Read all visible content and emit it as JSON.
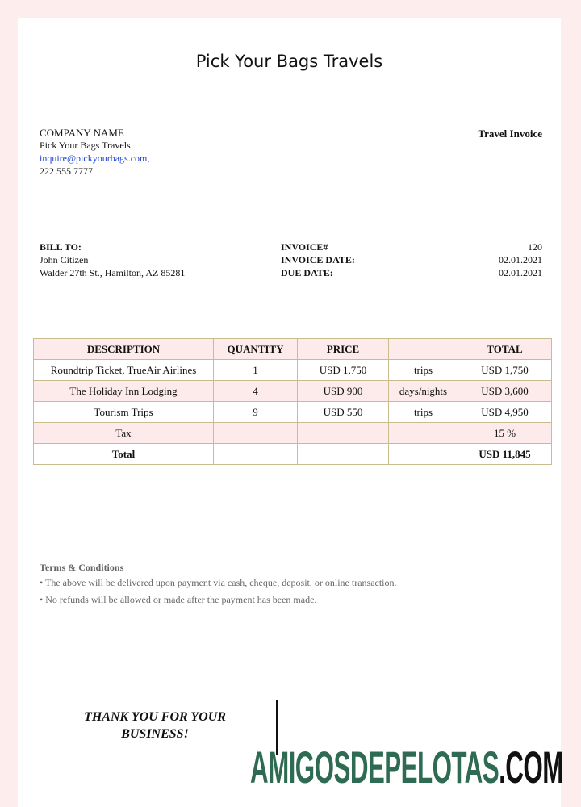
{
  "header": {
    "title": "Pick Your Bags Travels"
  },
  "company": {
    "label": "COMPANY NAME",
    "name": "Pick Your Bags Travels",
    "email": "inquire@pickyourbags.com,",
    "phone": "222 555 7777"
  },
  "doc_type": "Travel Invoice",
  "bill_to": {
    "label": "BILL TO:",
    "name": "John Citizen",
    "address": "Walder 27th St., Hamilton, AZ 85281"
  },
  "invoice": {
    "fields": [
      {
        "label": "INVOICE#",
        "value": "120"
      },
      {
        "label": "INVOICE DATE:",
        "value": "02.01.2021"
      },
      {
        "label": "DUE DATE:",
        "value": "02.01.2021"
      }
    ]
  },
  "table": {
    "header": {
      "description": "DESCRIPTION",
      "quantity": "QUANTITY",
      "price": "PRICE",
      "total": "TOTAL"
    },
    "rows": [
      {
        "description": "Roundtrip Ticket, TrueAir Airlines",
        "quantity": 1,
        "price": "USD 1,750",
        "unit": "trips",
        "total": "USD 1,750"
      },
      {
        "description": "The Holiday Inn Lodging",
        "quantity": 4,
        "price": "USD 900",
        "unit": "days/nights",
        "total": "USD 3,600"
      },
      {
        "description": "Tourism Trips",
        "quantity": 9,
        "price": "USD 550",
        "unit": "trips",
        "total": "USD 4,950"
      },
      {
        "description": "Tax",
        "total": "15 %"
      },
      {
        "description": "Total",
        "total": "USD 11,845"
      }
    ]
  },
  "terms": {
    "title": "Terms & Conditions",
    "items": [
      "• The above will be delivered upon payment via cash, cheque, deposit, or online transaction.",
      "• No refunds will be allowed or made after the payment has been made."
    ]
  },
  "thanks": "THANK YOU FOR YOUR BUSINESS!",
  "watermark": {
    "name": "AMIGOSDEPELOTAS",
    "tld": ".COM"
  }
}
